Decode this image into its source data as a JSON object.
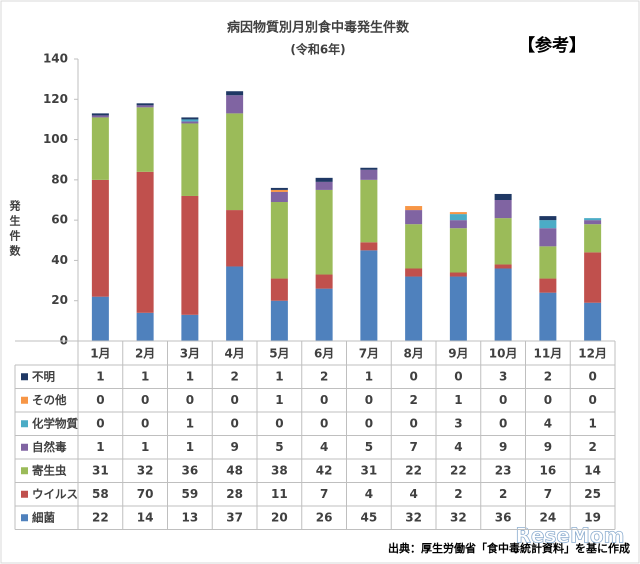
{
  "chart_data": {
    "type": "stacked-bar",
    "title": "病因物質別月別食中毒発生件数",
    "subtitle": "(令和6年)",
    "tag": "【参考】",
    "y_label": "発生件数",
    "source": "出典：厚生労働省「食中毒統計資料」を基に作成",
    "watermark": "ReseMom",
    "categories": [
      "1月",
      "2月",
      "3月",
      "4月",
      "5月",
      "6月",
      "7月",
      "8月",
      "9月",
      "10月",
      "11月",
      "12月"
    ],
    "series": [
      {
        "name": "細菌",
        "color": "#4f81bd",
        "values": [
          22,
          14,
          13,
          37,
          20,
          26,
          45,
          32,
          32,
          36,
          24,
          19
        ]
      },
      {
        "name": "ウイルス",
        "color": "#c0504d",
        "values": [
          58,
          70,
          59,
          28,
          11,
          7,
          4,
          4,
          2,
          2,
          7,
          25
        ]
      },
      {
        "name": "寄生虫",
        "color": "#9bbb59",
        "values": [
          31,
          32,
          36,
          48,
          38,
          42,
          31,
          22,
          22,
          23,
          16,
          14
        ]
      },
      {
        "name": "自然毒",
        "color": "#8064a2",
        "values": [
          1,
          1,
          1,
          9,
          5,
          4,
          5,
          7,
          4,
          9,
          9,
          2
        ]
      },
      {
        "name": "化学物質",
        "color": "#4bacc6",
        "values": [
          0,
          0,
          1,
          0,
          0,
          0,
          0,
          0,
          3,
          0,
          4,
          1
        ]
      },
      {
        "name": "その他",
        "color": "#f79646",
        "values": [
          0,
          0,
          0,
          0,
          1,
          0,
          0,
          2,
          1,
          0,
          0,
          0
        ]
      },
      {
        "name": "不明",
        "color": "#1f3864",
        "values": [
          1,
          1,
          1,
          2,
          1,
          2,
          1,
          0,
          0,
          3,
          2,
          0
        ]
      }
    ],
    "ylim": [
      0,
      140
    ],
    "yticks": [
      0,
      20,
      40,
      60,
      80,
      100,
      120,
      140
    ],
    "grid": false
  }
}
